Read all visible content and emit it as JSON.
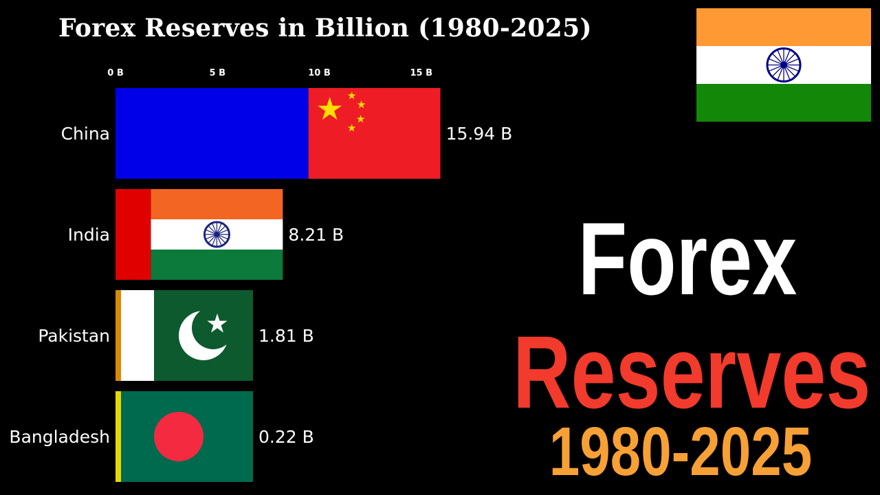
{
  "title": "Forex Reserves in Billion (1980-2025)",
  "headline": {
    "line1": "Forex",
    "line2": "Reserves",
    "line3": "1980-2025"
  },
  "current_leader_flag": "India",
  "colors": {
    "background": "#000000",
    "headline_white": "#ffffff",
    "headline_red": "#f23b2c",
    "headline_orange": "#f7a035"
  },
  "chart_data": {
    "type": "bar",
    "orientation": "horizontal",
    "title": "Forex Reserves in Billion (1980-2025)",
    "xlim": [
      0,
      20
    ],
    "x_ticks": [
      {
        "value": 0,
        "label": "0 B"
      },
      {
        "value": 5,
        "label": "5 B"
      },
      {
        "value": 10,
        "label": "10 B"
      },
      {
        "value": 15,
        "label": "15 B"
      }
    ],
    "categories": [
      "China",
      "India",
      "Pakistan",
      "Bangladesh"
    ],
    "values": [
      15.94,
      8.21,
      1.81,
      0.22
    ],
    "value_labels": [
      "15.94 B",
      "8.21 B",
      "1.81 B",
      "0.22 B"
    ],
    "bar_colors": [
      "#0000e8",
      "#e00000",
      "#d88a00",
      "#e8d800"
    ],
    "flags": [
      "China",
      "India",
      "Pakistan",
      "Bangladesh"
    ]
  }
}
